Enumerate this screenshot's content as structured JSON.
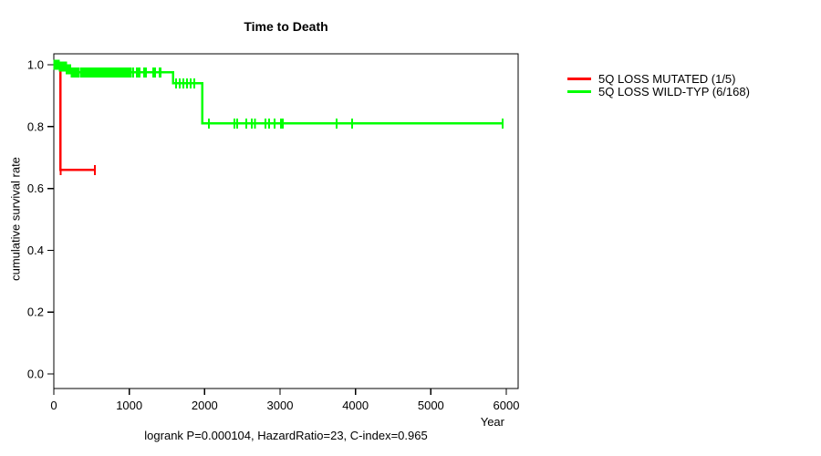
{
  "chart_data": {
    "type": "line",
    "subtype": "kaplan-meier-survival",
    "title": "Time to Death",
    "xlabel": "Year",
    "ylabel": "cumulative survival rate",
    "caption": "logrank P=0.000104, HazardRatio=23, C-index=0.965",
    "xlim": [
      0,
      6000
    ],
    "ylim": [
      0.0,
      1.0
    ],
    "x_ticks": [
      0,
      1000,
      2000,
      3000,
      4000,
      5000,
      6000
    ],
    "y_ticks": [
      0.0,
      0.2,
      0.4,
      0.6,
      0.8,
      1.0
    ],
    "grid": false,
    "legend_position": "right-outside",
    "axis_color": "#000000",
    "series": [
      {
        "name": "5Q LOSS MUTATED (1/5)",
        "color": "#ff0000",
        "steps": [
          [
            0,
            1.0
          ],
          [
            90,
            0.66
          ]
        ],
        "end_time": 545,
        "censor_times": [
          91,
          545
        ]
      },
      {
        "name": "5Q LOSS WILD-TYP (6/168)",
        "color": "#00ff00",
        "steps": [
          [
            0,
            1.0
          ],
          [
            75,
            0.994
          ],
          [
            170,
            0.985
          ],
          [
            230,
            0.975
          ],
          [
            1580,
            0.94
          ],
          [
            1970,
            0.81
          ]
        ],
        "end_time": 5950,
        "censor_times": [
          8,
          20,
          32,
          44,
          56,
          68,
          78,
          90,
          102,
          114,
          126,
          138,
          150,
          162,
          172,
          184,
          196,
          208,
          220,
          235,
          247,
          259,
          271,
          283,
          295,
          307,
          319,
          331,
          365,
          377,
          389,
          401,
          413,
          425,
          437,
          449,
          461,
          473,
          485,
          497,
          509,
          521,
          533,
          545,
          557,
          569,
          581,
          593,
          605,
          617,
          629,
          641,
          653,
          665,
          677,
          689,
          701,
          713,
          740,
          752,
          764,
          776,
          788,
          800,
          812,
          824,
          836,
          848,
          860,
          872,
          884,
          896,
          908,
          920,
          932,
          944,
          956,
          968,
          980,
          1005,
          1025,
          1050,
          1100,
          1120,
          1140,
          1200,
          1220,
          1320,
          1340,
          1405,
          1415,
          1620,
          1670,
          1720,
          1765,
          1815,
          1860,
          2055,
          2395,
          2430,
          2550,
          2625,
          2670,
          2805,
          2855,
          2925,
          3010,
          3035,
          3750,
          3955,
          5950
        ]
      }
    ]
  }
}
